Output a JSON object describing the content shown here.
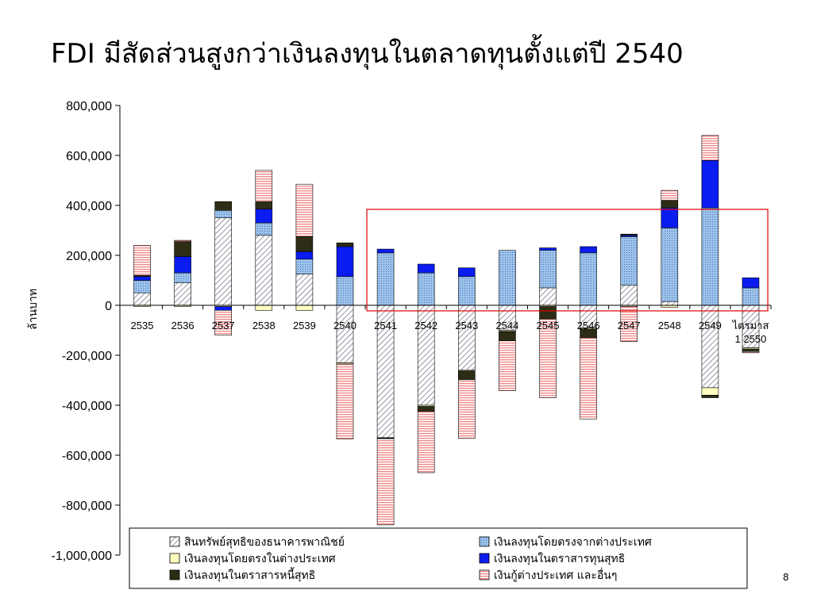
{
  "slide": {
    "title": "FDI มีสัดส่วนสูงกว่าเงินลงทุนในตลาดทุนตั้งแต่ปี 2540",
    "page_number": "8"
  },
  "colors": {
    "bank_assets": "#d8d8e8",
    "fdi_inflow": "#9ec3ea",
    "fdi_outflow": "#ffffc0",
    "equity": "#0a1cf0",
    "debt": "#2d2d16",
    "loans": "#f4b8b8",
    "highlight_box": "#e00000"
  },
  "chart_data": {
    "type": "bar",
    "stacked": true,
    "ylabel": "ล้านบาท",
    "ylim": [
      -1000000,
      800000
    ],
    "yticks": [
      800000,
      600000,
      400000,
      200000,
      0,
      -200000,
      -400000,
      -600000,
      -800000,
      -1000000
    ],
    "ytick_labels": [
      "800,000",
      "600,000",
      "400,000",
      "200,000",
      "0",
      "-200,000",
      "-400,000",
      "-600,000",
      "-800,000",
      "-1,000,000"
    ],
    "categories": [
      "2535",
      "2536",
      "2537",
      "2538",
      "2539",
      "2540",
      "2541",
      "2542",
      "2543",
      "2544",
      "2545",
      "2546",
      "2547",
      "2548",
      "2549",
      "ไตรมาส 1 2550"
    ],
    "category_lines": [
      [
        "2535"
      ],
      [
        "2536"
      ],
      [
        "2537"
      ],
      [
        "2538"
      ],
      [
        "2539"
      ],
      [
        "2540"
      ],
      [
        "2541"
      ],
      [
        "2542"
      ],
      [
        "2543"
      ],
      [
        "2544"
      ],
      [
        "2545"
      ],
      [
        "2546"
      ],
      [
        "2547"
      ],
      [
        "2548"
      ],
      [
        "2549"
      ],
      [
        "ไตรมาส",
        "1 2550"
      ]
    ],
    "highlight_range": [
      "2541",
      "ไตรมาส 1 2550"
    ],
    "legend_position": "bottom",
    "series": [
      {
        "name": "สินทรัพย์สุทธิของธนาคารพาณิชย์",
        "key": "bank_assets",
        "pattern": "diag",
        "values": [
          50000,
          90000,
          350000,
          280000,
          125000,
          -230000,
          -530000,
          -400000,
          -260000,
          -100000,
          70000,
          -90000,
          80000,
          15000,
          -330000,
          -170000
        ]
      },
      {
        "name": "เงินลงทุนโดยตรงจากต่างประเทศ",
        "key": "fdi_inflow",
        "pattern": "dots",
        "values": [
          50000,
          40000,
          30000,
          50000,
          60000,
          115000,
          210000,
          130000,
          115000,
          220000,
          150000,
          210000,
          195000,
          295000,
          390000,
          70000
        ]
      },
      {
        "name": "เงินลงทุนโดยตรงในต่างประเทศ",
        "key": "fdi_outflow",
        "pattern": "solid",
        "values": [
          -5000,
          -5000,
          -5000,
          -20000,
          -20000,
          -5000,
          -2000,
          -5000,
          -3000,
          -5000,
          -5000,
          -5000,
          -5000,
          -8000,
          -30000,
          -5000
        ]
      },
      {
        "name": "เงินลงทุนในตราสารทุนสุทธิ",
        "key": "equity",
        "pattern": "solid",
        "values": [
          15000,
          65000,
          -15000,
          55000,
          30000,
          120000,
          15000,
          35000,
          35000,
          -2000,
          10000,
          25000,
          5000,
          80000,
          190000,
          40000
        ]
      },
      {
        "name": "เงินลงทุนในตราสารหนี้สุทธิ",
        "key": "debt",
        "pattern": "solid",
        "values": [
          5000,
          60000,
          35000,
          30000,
          60000,
          15000,
          -2000,
          -20000,
          -35000,
          -35000,
          -50000,
          -35000,
          5000,
          30000,
          -10000,
          -10000
        ]
      },
      {
        "name": "เงินกู้ต่างประเทศ และอื่นๆ",
        "key": "loans",
        "pattern": "hlines",
        "values": [
          120000,
          5000,
          -100000,
          125000,
          210000,
          -300000,
          -345000,
          -245000,
          -235000,
          -200000,
          -315000,
          -325000,
          -140000,
          40000,
          100000,
          -5000
        ]
      }
    ]
  }
}
